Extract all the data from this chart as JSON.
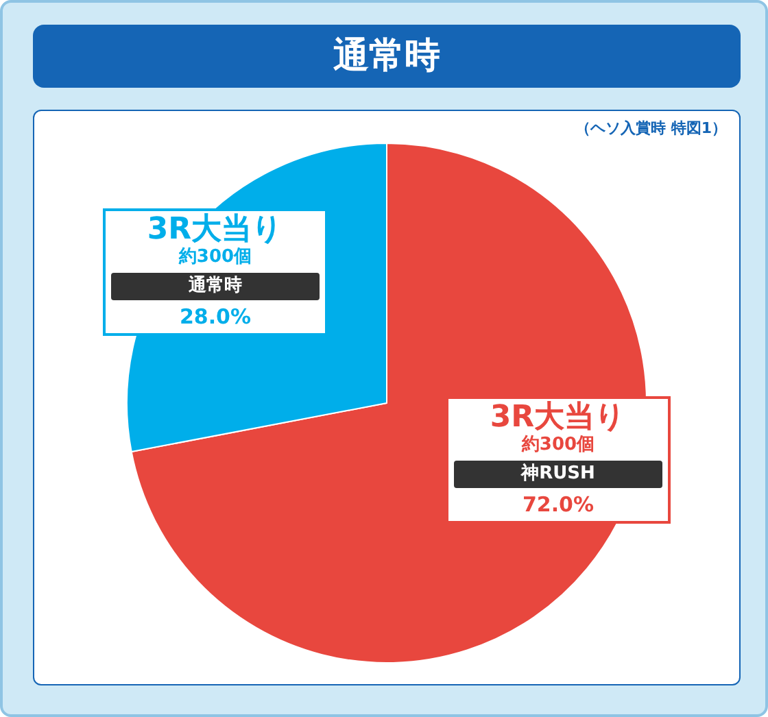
{
  "chart_data": {
    "type": "pie",
    "title": "通常時",
    "subtitle": "（ヘソ入賞時 特図1）",
    "categories": [
      "神RUSH",
      "通常時"
    ],
    "values": [
      72.0,
      28.0
    ],
    "colors": [
      "#e8473e",
      "#00aeea"
    ],
    "value_labels": [
      "72.0%",
      "28.0%"
    ],
    "annotations": [
      "3R大当り",
      "約300個",
      "3R大当り",
      "約300個"
    ],
    "legend": false
  }
}
